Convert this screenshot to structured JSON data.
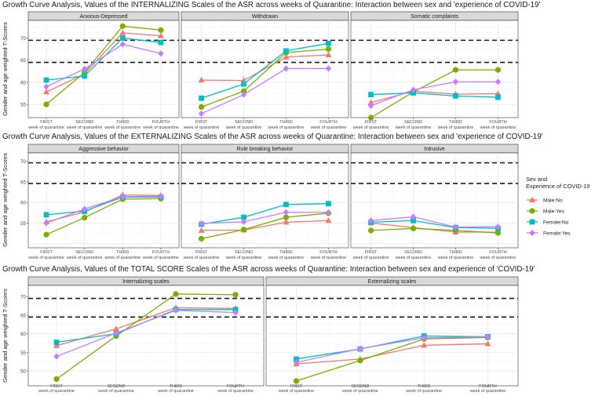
{
  "legend": {
    "title_line1": "Sex and",
    "title_line2": "Experience of COVID-19",
    "entries": [
      {
        "name": "Male:No",
        "color": "#F8766D",
        "shape": "triangle"
      },
      {
        "name": "Male:Yes",
        "color": "#7CAE00",
        "shape": "circle"
      },
      {
        "name": "Female:No",
        "color": "#00BFC4",
        "shape": "square"
      },
      {
        "name": "Female:Yes",
        "color": "#C77CFF",
        "shape": "diamond"
      }
    ]
  },
  "chart_data": [
    {
      "type": "line",
      "title": "Growth Curve Analysis, Values of the INTERNALIZING Scales of the ASR across weeks of Quarantine: Interaction between sex and 'experience of COVID-19'",
      "ylabel": "Gender and age weighted T-Scores",
      "ylim": [
        52,
        74
      ],
      "yticks": [
        55,
        60,
        65,
        70
      ],
      "reference_lines": [
        64.5,
        69.5
      ],
      "grid": true,
      "x_line1": [
        "FIRST",
        "SECOND",
        "THIRD",
        "FOURTH"
      ],
      "x_line2": [
        "week of quarantine",
        "week of quarantine",
        "week of quarantine",
        "week of quarantine"
      ],
      "panels": [
        {
          "title": "Anxious-Depressed",
          "series": [
            {
              "name": "Male:No",
              "values": [
                57.8,
                61.9,
                71.2,
                70.5
              ]
            },
            {
              "name": "Male:Yes",
              "values": [
                55.0,
                62.2,
                72.7,
                71.8
              ]
            },
            {
              "name": "Female:No",
              "values": [
                60.5,
                61.4,
                70.0,
                69.0
              ]
            },
            {
              "name": "Female:Yes",
              "values": [
                59.0,
                63.0,
                68.6,
                66.5
              ]
            }
          ]
        },
        {
          "title": "Withdrawn",
          "series": [
            {
              "name": "Male:No",
              "values": [
                60.5,
                60.4,
                65.7,
                66.2
              ]
            },
            {
              "name": "Male:Yes",
              "values": [
                54.4,
                58.0,
                66.7,
                67.5
              ]
            },
            {
              "name": "Female:No",
              "values": [
                56.4,
                59.6,
                67.1,
                68.8
              ]
            },
            {
              "name": "Female:Yes",
              "values": [
                52.9,
                57.2,
                63.1,
                63.1
              ]
            }
          ]
        },
        {
          "title": "Somatic complaints",
          "series": [
            {
              "name": "Male:No",
              "values": [
                55.4,
                58.0,
                57.3,
                57.4
              ]
            },
            {
              "name": "Male:Yes",
              "values": [
                52.0,
                57.8,
                62.8,
                62.8
              ]
            },
            {
              "name": "Female:No",
              "values": [
                57.2,
                57.6,
                56.9,
                56.6
              ]
            },
            {
              "name": "Female:Yes",
              "values": [
                54.7,
                58.3,
                60.1,
                60.1
              ]
            }
          ]
        }
      ]
    },
    {
      "type": "line",
      "title": "Growth Curve Analysis, Values of the EXTERNALIZING Scales of the ASR across weeks of Quarantine: Interaction between sex and 'experience of COVID-19'",
      "ylabel": "Gender and age weighted T-Scores",
      "ylim": [
        49,
        72
      ],
      "yticks": [
        55,
        60,
        65,
        70
      ],
      "reference_lines": [
        64.6,
        69.6
      ],
      "grid": true,
      "x_line1": [
        "FIRST",
        "SECOND",
        "THIRD",
        "FOURTH"
      ],
      "x_line2": [
        "week of quarantine",
        "week of quarantine",
        "week of quarantine",
        "week of quarantine"
      ],
      "panels": [
        {
          "title": "Aggressive behavior",
          "series": [
            {
              "name": "Male:No",
              "values": [
                55.3,
                57.7,
                61.8,
                61.7
              ]
            },
            {
              "name": "Male:Yes",
              "values": [
                52.2,
                56.3,
                60.8,
                60.9
              ]
            },
            {
              "name": "Female:No",
              "values": [
                57.0,
                57.9,
                61.3,
                61.3
              ]
            },
            {
              "name": "Female:Yes",
              "values": [
                55.0,
                58.4,
                61.4,
                61.5
              ]
            }
          ]
        },
        {
          "title": "Rule breaking behavior",
          "series": [
            {
              "name": "Male:No",
              "values": [
                53.2,
                53.3,
                55.2,
                55.6
              ]
            },
            {
              "name": "Male:Yes",
              "values": [
                51.2,
                53.4,
                56.4,
                57.4
              ]
            },
            {
              "name": "Female:No",
              "values": [
                54.7,
                56.4,
                59.5,
                59.7
              ]
            },
            {
              "name": "Female:Yes",
              "values": [
                54.9,
                55.3,
                57.6,
                57.6
              ]
            }
          ]
        },
        {
          "title": "Intrusive",
          "series": [
            {
              "name": "Male:No",
              "values": [
                55.0,
                53.9,
                52.8,
                52.8
              ]
            },
            {
              "name": "Male:Yes",
              "values": [
                53.2,
                53.7,
                53.2,
                52.6
              ]
            },
            {
              "name": "Female:No",
              "values": [
                55.2,
                55.6,
                53.9,
                53.7
              ]
            },
            {
              "name": "Female:Yes",
              "values": [
                55.6,
                56.5,
                54.0,
                54.1
              ]
            }
          ]
        }
      ]
    },
    {
      "type": "line",
      "title": "Growth Curve Analysis, Values of the TOTAL SCORE Scales of the ASR across weeks of Quarantine: Interaction between sex and experience of 'COVID-19'",
      "ylabel": "Gender and age weighted T-Scores",
      "ylim": [
        46,
        73
      ],
      "yticks": [
        50,
        55,
        60,
        65,
        70
      ],
      "reference_lines": [
        64.5,
        69.5
      ],
      "grid": true,
      "x_line1": [
        "FIRST",
        "SECOND",
        "THIRD",
        "FOURTH"
      ],
      "x_line2": [
        "week of quarantine",
        "week of quarantine",
        "week of quarantine",
        "week of quarantine"
      ],
      "panels": [
        {
          "title": "Internalizing scales",
          "series": [
            {
              "name": "Male:No",
              "values": [
                56.8,
                61.3,
                67.0,
                66.8
              ]
            },
            {
              "name": "Male:Yes",
              "values": [
                47.8,
                59.4,
                70.7,
                70.5
              ]
            },
            {
              "name": "Female:No",
              "values": [
                57.7,
                60.0,
                66.5,
                66.5
              ]
            },
            {
              "name": "Female:Yes",
              "values": [
                53.9,
                60.2,
                66.3,
                65.7
              ]
            }
          ]
        },
        {
          "title": "Externalizing scales",
          "series": [
            {
              "name": "Male:No",
              "values": [
                51.9,
                53.2,
                56.9,
                57.3
              ]
            },
            {
              "name": "Male:Yes",
              "values": [
                47.3,
                52.8,
                58.6,
                59.0
              ]
            },
            {
              "name": "Female:No",
              "values": [
                53.2,
                55.9,
                59.4,
                59.2
              ]
            },
            {
              "name": "Female:Yes",
              "values": [
                52.3,
                56.0,
                58.9,
                59.2
              ]
            }
          ]
        }
      ]
    }
  ]
}
